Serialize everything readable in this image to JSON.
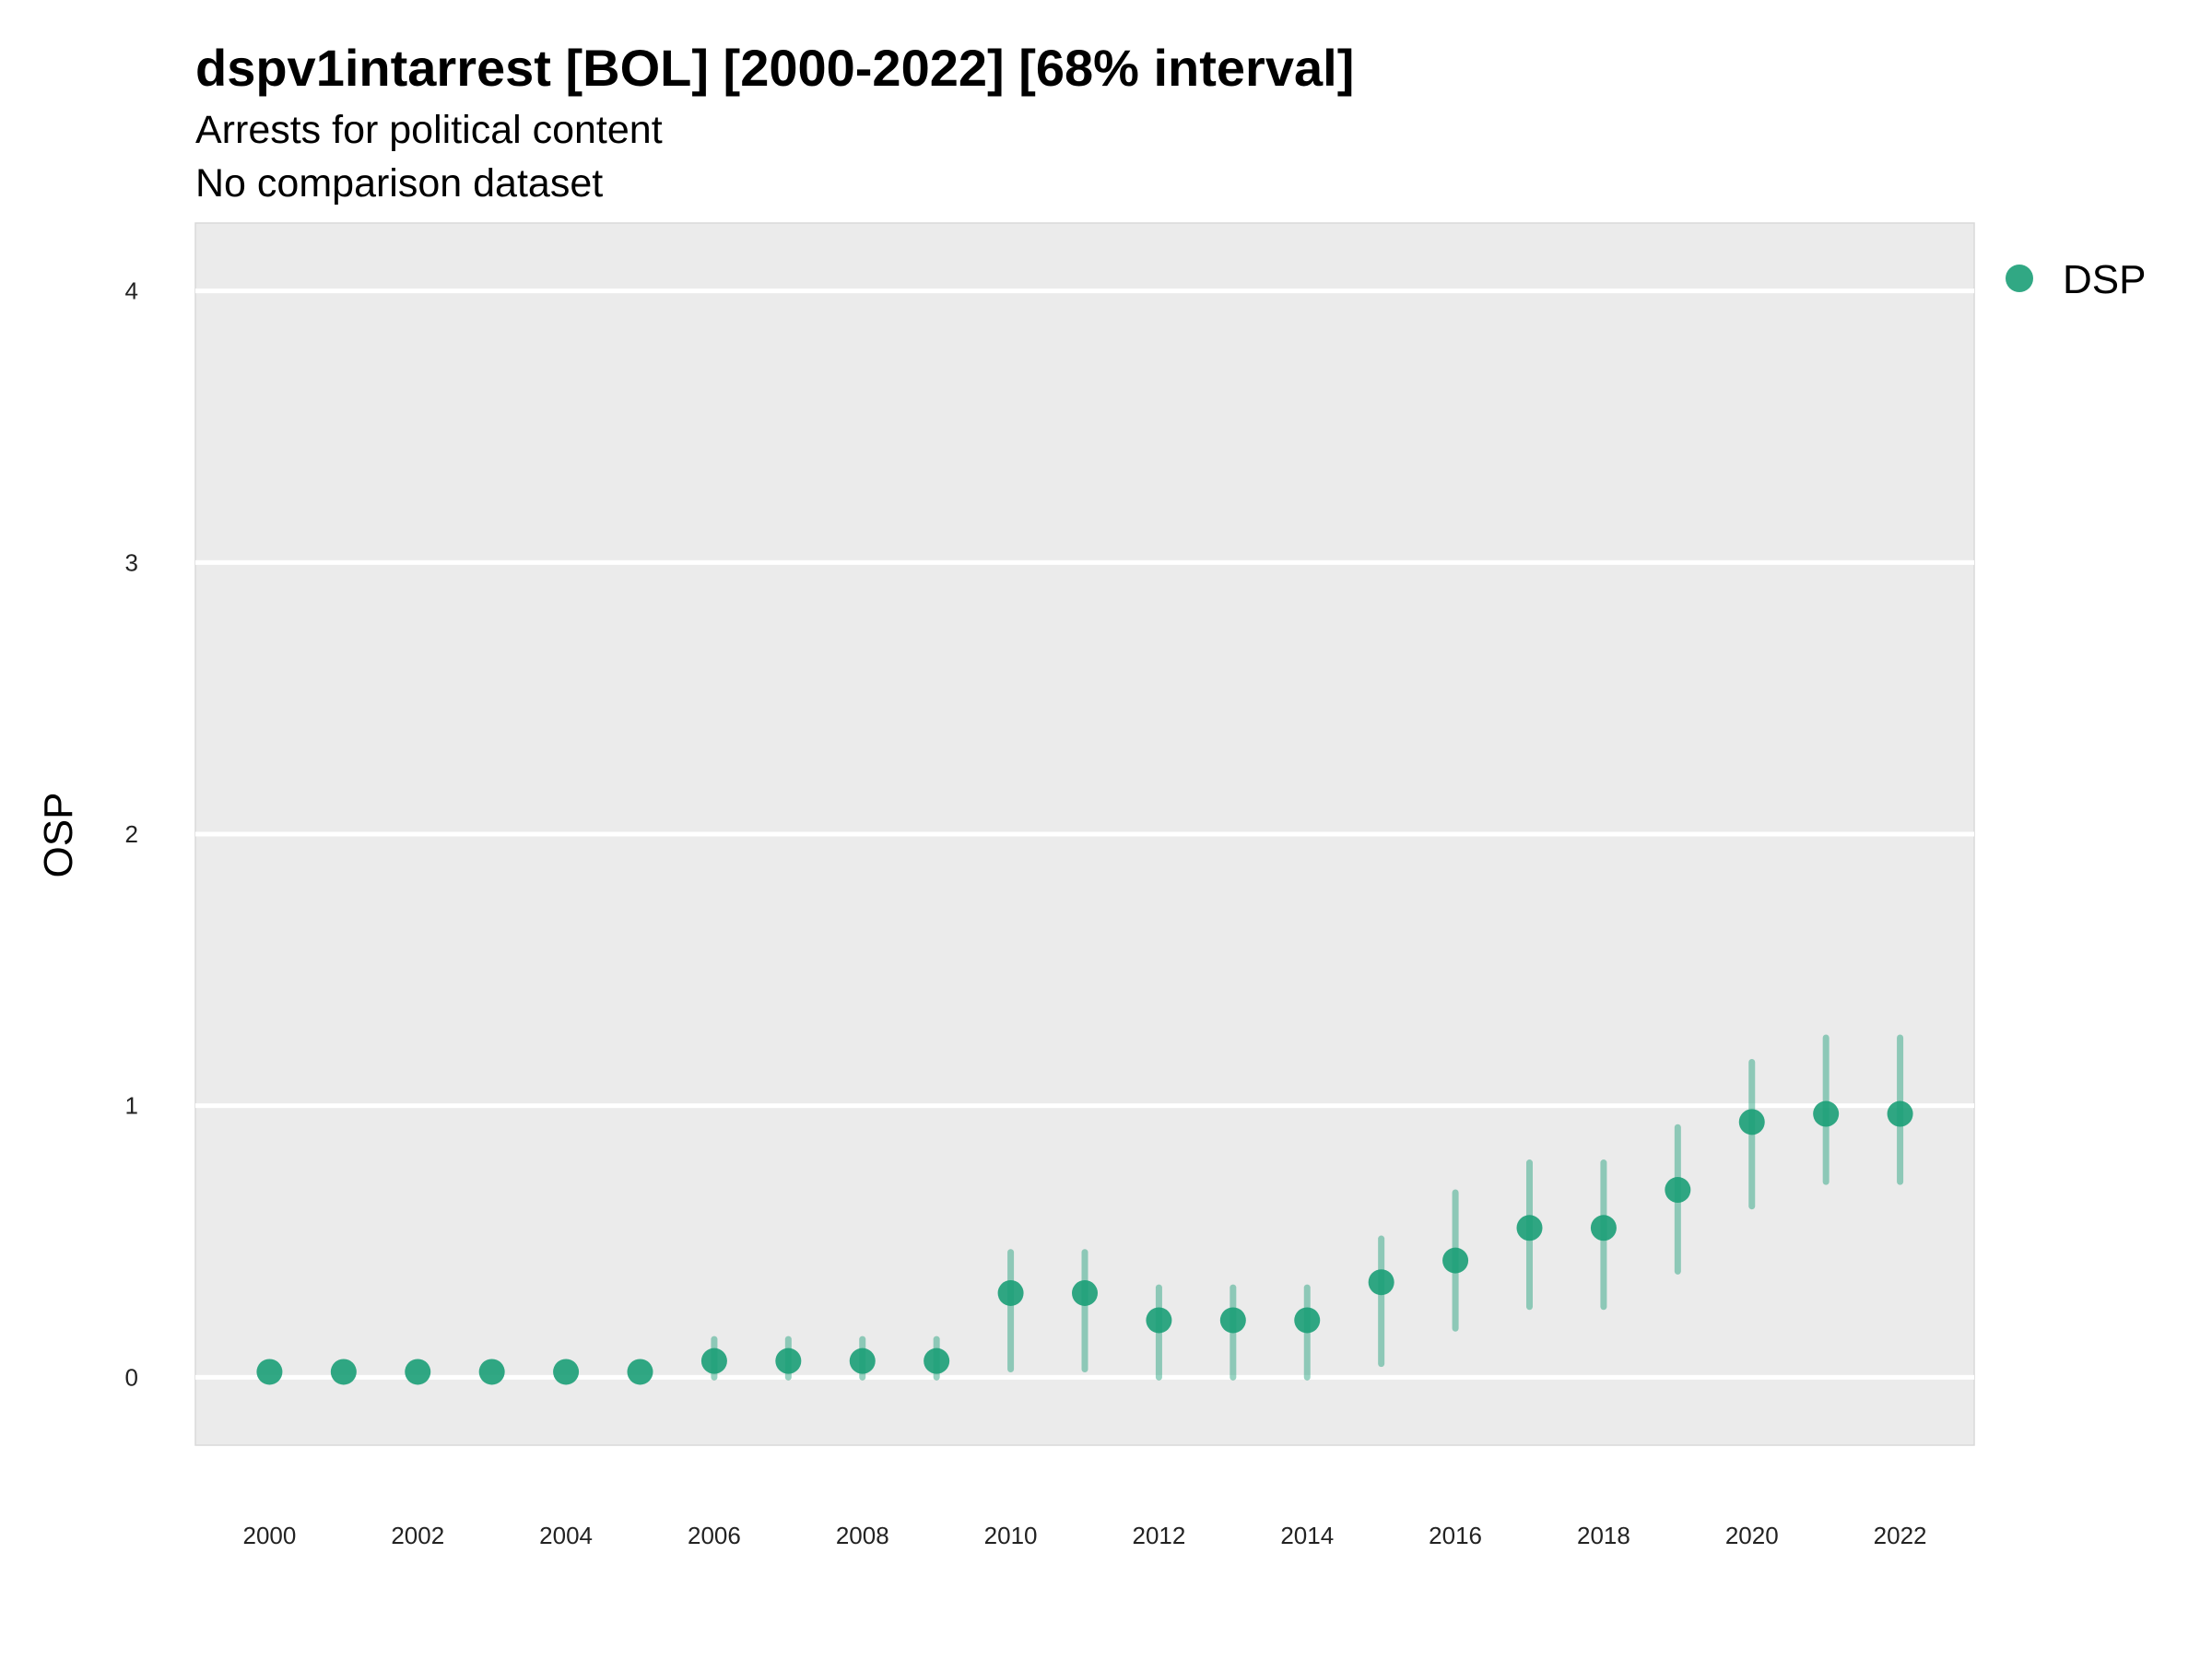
{
  "chart_data": {
    "type": "scatter",
    "title": "dspv1intarrest [BOL] [2000-2022] [68% interval]",
    "subtitle": "Arrests for political content",
    "subtitle2": "No comparison dataset",
    "xlabel": "",
    "ylabel": "OSP",
    "ylim": [
      -0.25,
      4.25
    ],
    "xlim": [
      1999,
      2023
    ],
    "yticks": [
      "0",
      "1",
      "2",
      "3",
      "4"
    ],
    "xticks": [
      "2000",
      "2002",
      "2004",
      "2006",
      "2008",
      "2010",
      "2012",
      "2014",
      "2016",
      "2018",
      "2020",
      "2022"
    ],
    "grid": true,
    "legend_position": "top-right",
    "series": [
      {
        "name": "DSP",
        "color": "#1b9e77",
        "x": [
          2000,
          2001,
          2002,
          2003,
          2004,
          2005,
          2006,
          2007,
          2008,
          2009,
          2010,
          2011,
          2012,
          2013,
          2014,
          2015,
          2016,
          2017,
          2018,
          2019,
          2020,
          2021,
          2022
        ],
        "y": [
          0.02,
          0.02,
          0.02,
          0.02,
          0.02,
          0.02,
          0.06,
          0.06,
          0.06,
          0.06,
          0.31,
          0.31,
          0.21,
          0.21,
          0.21,
          0.35,
          0.43,
          0.55,
          0.55,
          0.69,
          0.94,
          0.97,
          0.97
        ],
        "lower": [
          0.0,
          0.0,
          0.0,
          0.0,
          0.0,
          0.0,
          0.0,
          0.0,
          0.0,
          0.0,
          0.03,
          0.03,
          0.0,
          0.0,
          0.0,
          0.05,
          0.18,
          0.26,
          0.26,
          0.39,
          0.63,
          0.72,
          0.72
        ],
        "upper": [
          0.0,
          0.0,
          0.0,
          0.0,
          0.0,
          0.0,
          0.14,
          0.14,
          0.14,
          0.14,
          0.46,
          0.46,
          0.33,
          0.33,
          0.33,
          0.51,
          0.68,
          0.79,
          0.79,
          0.92,
          1.16,
          1.25,
          1.25
        ]
      }
    ]
  }
}
